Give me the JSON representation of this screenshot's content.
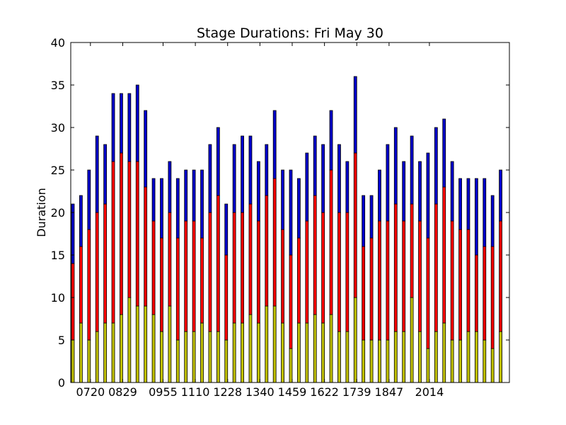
{
  "chart_data": {
    "type": "bar",
    "stacked": true,
    "title": "Stage Durations: Fri May 30",
    "xlabel": "",
    "ylabel": "Duration",
    "ylim": [
      0,
      40
    ],
    "yticks": [
      0,
      5,
      10,
      15,
      20,
      25,
      30,
      35,
      40
    ],
    "grid": false,
    "x_tick_labels": [
      {
        "index": 2,
        "label": "0720"
      },
      {
        "index": 6,
        "label": "0829"
      },
      {
        "index": 11,
        "label": "0955"
      },
      {
        "index": 15,
        "label": "1110"
      },
      {
        "index": 19,
        "label": "1228"
      },
      {
        "index": 23,
        "label": "1340"
      },
      {
        "index": 27,
        "label": "1459"
      },
      {
        "index": 31,
        "label": "1622"
      },
      {
        "index": 35,
        "label": "1739"
      },
      {
        "index": 39,
        "label": "1847"
      },
      {
        "index": 44,
        "label": "2014"
      }
    ],
    "series": [
      {
        "color": "#bfbf00",
        "values": [
          5,
          7,
          5,
          6,
          7,
          7,
          8,
          10,
          9,
          9,
          8,
          6,
          9,
          5,
          6,
          6,
          7,
          6,
          6,
          5,
          7,
          7,
          8,
          7,
          9,
          9,
          7,
          4,
          7,
          7,
          8,
          7,
          8,
          6,
          6,
          10,
          5,
          5,
          5,
          5,
          6,
          6,
          10,
          6,
          4,
          6,
          7,
          5,
          5,
          6,
          6,
          5,
          4,
          6
        ]
      },
      {
        "color": "#ff0000",
        "values": [
          9,
          9,
          13,
          14,
          14,
          19,
          19,
          16,
          17,
          14,
          11,
          11,
          11,
          12,
          13,
          13,
          10,
          14,
          16,
          10,
          13,
          13,
          13,
          12,
          13,
          15,
          11,
          11,
          10,
          12,
          14,
          13,
          17,
          14,
          14,
          17,
          11,
          12,
          14,
          14,
          15,
          13,
          11,
          13,
          13,
          15,
          16,
          14,
          13,
          12,
          9,
          11,
          12,
          13
        ]
      },
      {
        "color": "#0000cc",
        "values": [
          7,
          6,
          7,
          9,
          7,
          8,
          7,
          8,
          9,
          9,
          5,
          7,
          6,
          7,
          6,
          6,
          8,
          8,
          8,
          6,
          8,
          9,
          8,
          7,
          6,
          8,
          7,
          10,
          7,
          8,
          7,
          8,
          7,
          8,
          6,
          9,
          6,
          5,
          6,
          9,
          9,
          7,
          8,
          7,
          10,
          9,
          8,
          7,
          6,
          6,
          9,
          8,
          6,
          6
        ]
      }
    ]
  }
}
